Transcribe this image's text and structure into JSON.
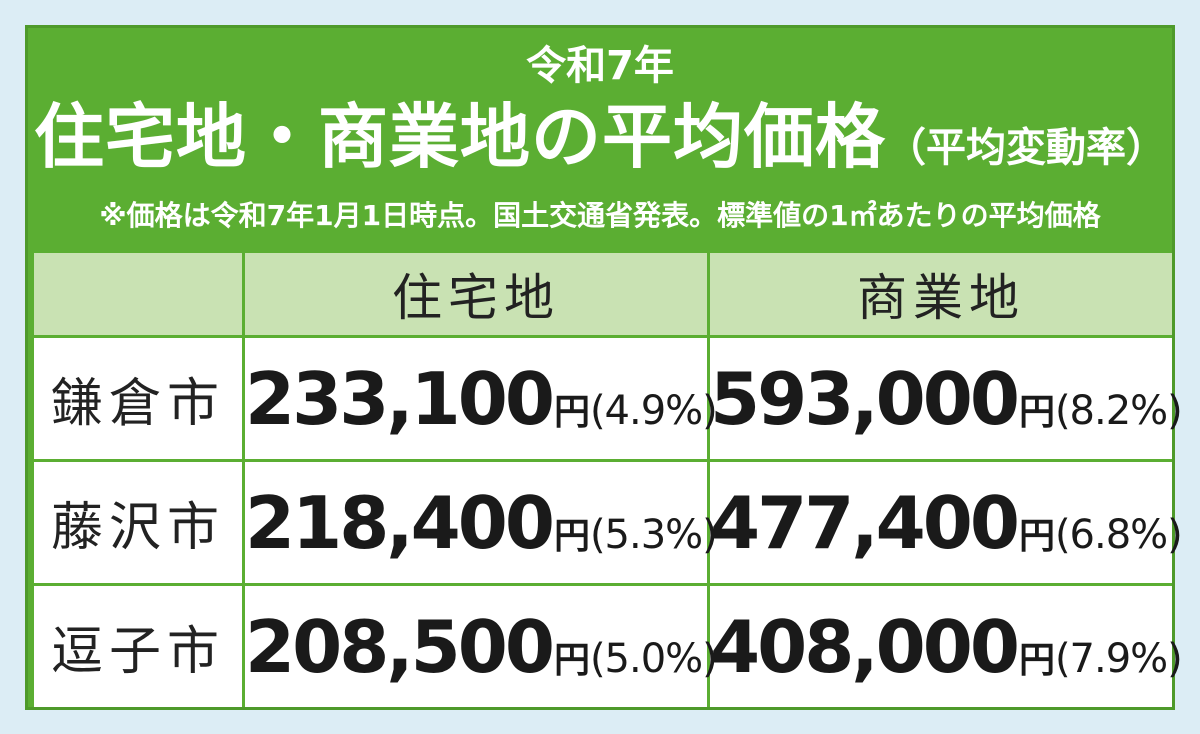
{
  "header": {
    "line1": "令和7年",
    "title": "住宅地・商業地の平均価格",
    "title_sub": "（平均変動率）",
    "note": "※価格は令和7年1月1日時点。国土交通省発表。標準値の1㎡あたりの平均価格"
  },
  "columns": [
    "住宅地",
    "商業地"
  ],
  "rows": [
    {
      "city": "鎌倉市",
      "residential": {
        "price": "233,100",
        "unit": "円",
        "change": "(4.9%)"
      },
      "commercial": {
        "price": "593,000",
        "unit": "円",
        "change": "(8.2%)"
      }
    },
    {
      "city": "藤沢市",
      "residential": {
        "price": "218,400",
        "unit": "円",
        "change": "(5.3%)"
      },
      "commercial": {
        "price": "477,400",
        "unit": "円",
        "change": "(6.8%)"
      }
    },
    {
      "city": "逗子市",
      "residential": {
        "price": "208,500",
        "unit": "円",
        "change": "(5.0%)"
      },
      "commercial": {
        "price": "408,000",
        "unit": "円",
        "change": "(7.9%)"
      }
    }
  ],
  "chart_data": {
    "type": "table",
    "categories": [
      "鎌倉市",
      "藤沢市",
      "逗子市"
    ],
    "series": [
      {
        "name": "住宅地",
        "values": [
          233100,
          218400,
          208500
        ],
        "change_pct": [
          4.9,
          5.3,
          5.0
        ]
      },
      {
        "name": "商業地",
        "values": [
          593000,
          477400,
          408000
        ],
        "change_pct": [
          8.2,
          6.8,
          7.9
        ]
      }
    ]
  },
  "colors": {
    "header_green": "#5bae32",
    "subheader_green": "#c9e2b3",
    "background": "#dcedf5"
  }
}
